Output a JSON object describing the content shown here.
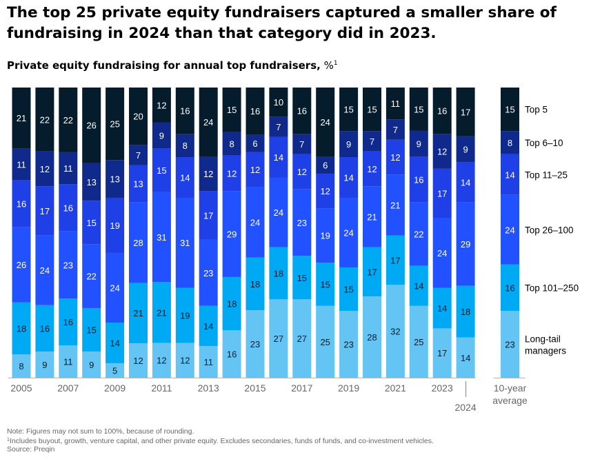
{
  "title": "The top 25 private equity fundraisers captured a smaller share of fundraising in 2024 than that category did in 2023.",
  "subtitle": {
    "label": "Private equity fundraising for annual top fundraisers,",
    "unit": "%",
    "footnote_marker": "1"
  },
  "chart_data": {
    "type": "bar",
    "stacked": true,
    "orientation": "vertical",
    "categories": [
      "2005",
      "2006",
      "2007",
      "2008",
      "2009",
      "2010",
      "2011",
      "2012",
      "2013",
      "2014",
      "2015",
      "2016",
      "2017",
      "2018",
      "2019",
      "2020",
      "2021",
      "2022",
      "2023",
      "2024"
    ],
    "x_tick_labels": [
      "2005",
      "2007",
      "2009",
      "2011",
      "2013",
      "2015",
      "2017",
      "2019",
      "2021",
      "2023",
      "2024"
    ],
    "series": [
      {
        "name": "Long-tail managers",
        "color": "#64c4f4",
        "values": [
          8,
          9,
          11,
          9,
          5,
          12,
          12,
          12,
          11,
          16,
          23,
          27,
          27,
          25,
          23,
          28,
          32,
          25,
          17,
          14
        ]
      },
      {
        "name": "Top 101–250",
        "color": "#00a9f4",
        "values": [
          18,
          16,
          16,
          15,
          14,
          21,
          21,
          19,
          14,
          18,
          18,
          18,
          15,
          15,
          15,
          17,
          17,
          14,
          14,
          18
        ]
      },
      {
        "name": "Top 26–100",
        "color": "#2251ff",
        "values": [
          26,
          24,
          23,
          22,
          24,
          28,
          31,
          31,
          23,
          29,
          24,
          24,
          23,
          19,
          24,
          21,
          21,
          22,
          24,
          29
        ]
      },
      {
        "name": "Top 11–25",
        "color": "#1f40e6",
        "values": [
          16,
          17,
          16,
          15,
          19,
          13,
          15,
          14,
          17,
          12,
          12,
          14,
          12,
          12,
          14,
          12,
          12,
          16,
          17,
          14
        ]
      },
      {
        "name": "Top 6–10",
        "color": "#0f2a8c",
        "values": [
          11,
          12,
          11,
          13,
          13,
          7,
          9,
          8,
          12,
          8,
          6,
          7,
          7,
          6,
          9,
          7,
          7,
          9,
          12,
          9
        ]
      },
      {
        "name": "Top 5",
        "color": "#051c2c",
        "values": [
          21,
          22,
          22,
          26,
          25,
          20,
          12,
          16,
          24,
          15,
          16,
          10,
          16,
          24,
          15,
          15,
          11,
          15,
          16,
          17
        ]
      }
    ],
    "average": {
      "label": "10-year average",
      "values": [
        23,
        16,
        24,
        14,
        8,
        15
      ]
    },
    "ylim": [
      0,
      100
    ]
  },
  "notes": {
    "note": "Note: Figures may not sum to 100%, because of rounding.",
    "footnote_marker": "1",
    "footnote": "Includes buyout, growth, venture capital, and other private equity. Excludes secondaries, funds of funds, and co-investment vehicles.",
    "source": "Source: Preqin"
  }
}
